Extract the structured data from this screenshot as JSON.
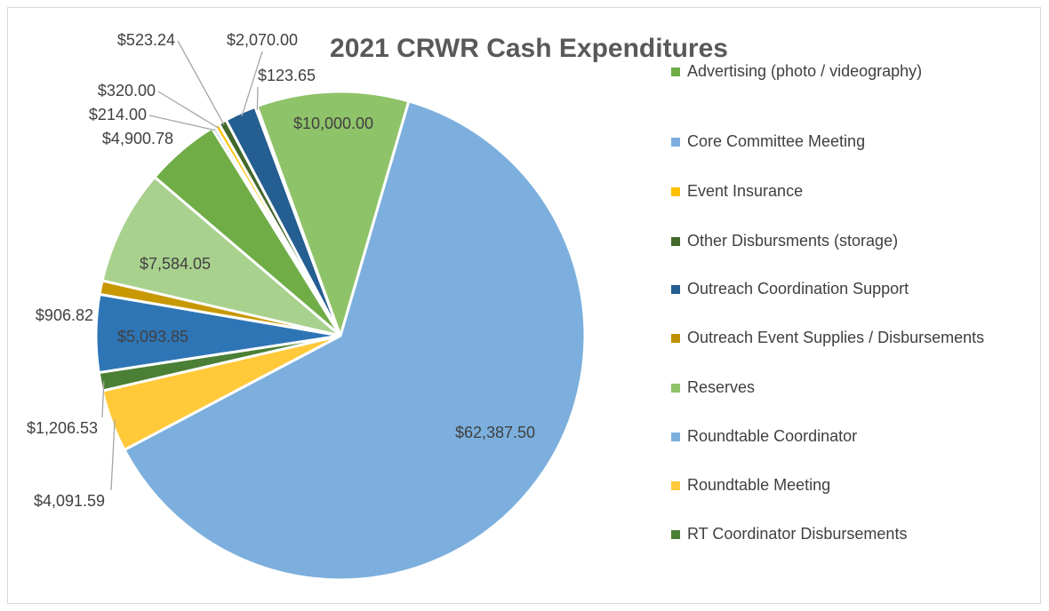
{
  "chart_data": {
    "type": "pie",
    "title": "2021 CRWR Cash Expenditures",
    "categories": [
      "Advertising (photo / videography)",
      "Core Committee Meeting",
      "Event Insurance",
      "Other Disbursments (storage)",
      "Outreach Coordination Support",
      "Outreach Event Supplies / Disbursements",
      "Reserves",
      "Roundtable Coordinator",
      "Roundtable Meeting",
      "RT Coordinator Disbursements",
      null,
      null,
      null
    ],
    "values": [
      4900.78,
      214,
      320,
      523.24,
      2070,
      123.65,
      10000,
      62387.5,
      4091.59,
      1206.53,
      5093.85,
      906.82,
      7584.05
    ],
    "value_labels": [
      "$4,900.78",
      "$214.00",
      "$320.00",
      "$523.24",
      "$2,070.00",
      "$123.65",
      "$10,000.00",
      "$62,387.50",
      "$4,091.59",
      "$1,206.53",
      "$5,093.85",
      "$906.82",
      "$7,584.05"
    ],
    "colors": [
      "#70ad47",
      "#7cafdd",
      "#ffc000",
      "#43682b",
      "#255e91",
      "#bf8f00",
      "#8fc369",
      "#7cafdd",
      "#ffc93a",
      "#4a7f35",
      "#2e75b6",
      "#c89800",
      "#a9d18e"
    ],
    "legend": "right"
  }
}
